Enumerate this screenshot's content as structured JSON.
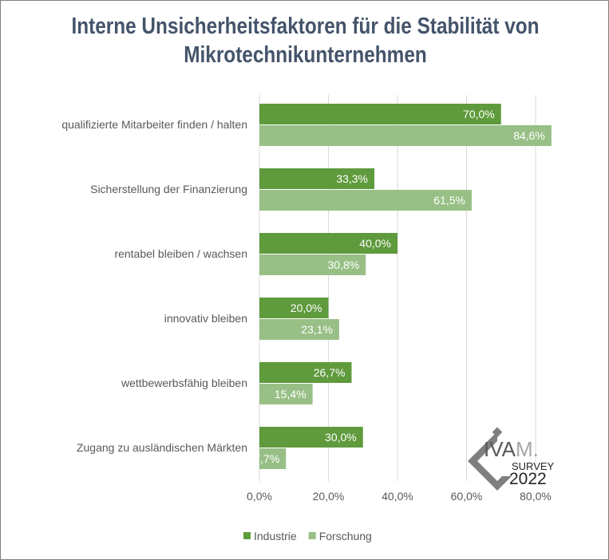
{
  "chart_data": {
    "type": "bar",
    "orientation": "horizontal",
    "title": "Interne Unsicherheitsfaktoren für die Stabilität von Mikrotechnikunternehmen",
    "title_lines": [
      "Interne Unsicherheitsfaktoren für die Stabilität von",
      "Mikrotechnikunternehmen"
    ],
    "categories": [
      "qualifizierte Mitarbeiter finden / halten",
      "Sicherstellung der Finanzierung",
      "rentabel bleiben / wachsen",
      "innovativ bleiben",
      "wettbewerbsfähig bleiben",
      "Zugang zu ausländischen Märkten"
    ],
    "series": [
      {
        "name": "Industrie",
        "color": "#5f9a3c",
        "values": [
          70.0,
          33.3,
          40.0,
          20.0,
          26.7,
          30.0
        ],
        "labels": [
          "70,0%",
          "33,3%",
          "40,0%",
          "20,0%",
          "26,7%",
          "30,0%"
        ]
      },
      {
        "name": "Forschung",
        "color": "#98c086",
        "values": [
          84.6,
          61.5,
          30.8,
          23.1,
          15.4,
          7.7
        ],
        "labels": [
          "84,6%",
          "61,5%",
          "30,8%",
          "23,1%",
          "15,4%",
          "7,7%"
        ]
      }
    ],
    "xlim": [
      0,
      90
    ],
    "xticks": [
      0,
      20,
      40,
      60,
      80
    ],
    "xtick_labels": [
      "0,0%",
      "20,0%",
      "40,0%",
      "60,0%",
      "80,0%"
    ],
    "grid": true,
    "legend": "bottom",
    "xlabel": "",
    "ylabel": ""
  },
  "logo": {
    "text": "IVAM.",
    "sub": "SURVEY",
    "year": "2022"
  }
}
